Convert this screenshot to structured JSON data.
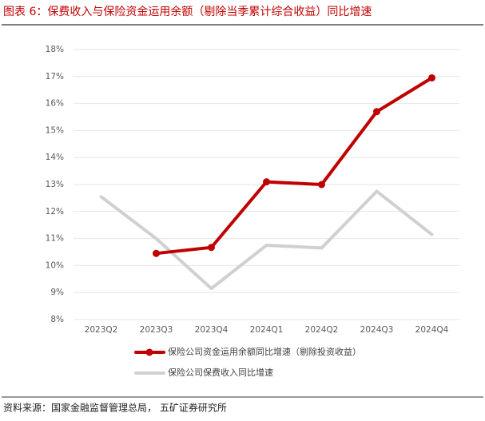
{
  "chart_data": {
    "type": "line",
    "title": "图表 6：保费收入与保险资金运用余额（剔除当季累计综合收益）同比增速",
    "source": "资料来源：国家金融监督管理总局， 五矿证券研究所",
    "categories": [
      "2023Q2",
      "2023Q3",
      "2023Q4",
      "2024Q1",
      "2024Q2",
      "2024Q3",
      "2024Q4"
    ],
    "series": [
      {
        "name": "保险公司资金运用余额同比增速（剔除投资收益）",
        "color": "#c00000",
        "marker": true,
        "values": [
          null,
          10.45,
          10.67,
          13.1,
          13.0,
          15.7,
          16.95
        ]
      },
      {
        "name": "保险公司保费收入同比增速",
        "color": "#d0d0d0",
        "marker": false,
        "values": [
          12.55,
          11.0,
          9.15,
          10.75,
          10.65,
          12.75,
          11.15
        ]
      }
    ],
    "ylim": [
      8,
      18
    ],
    "yticks": [
      {
        "value": 8,
        "label": "8%"
      },
      {
        "value": 9,
        "label": "9%"
      },
      {
        "value": 10,
        "label": "10%"
      },
      {
        "value": 11,
        "label": "11%"
      },
      {
        "value": 12,
        "label": "12%"
      },
      {
        "value": 13,
        "label": "13%"
      },
      {
        "value": 14,
        "label": "14%"
      },
      {
        "value": 15,
        "label": "15%"
      },
      {
        "value": 16,
        "label": "16%"
      },
      {
        "value": 17,
        "label": "17%"
      },
      {
        "value": 18,
        "label": "18%"
      }
    ],
    "grid": true,
    "legend": "bottom"
  }
}
